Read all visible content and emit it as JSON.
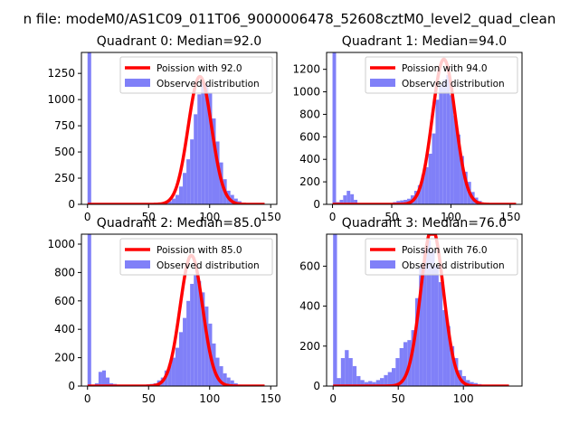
{
  "chart_data": {
    "suptitle": "n file: modeM0/AS1C09_011T06_9000006478_52608cztM0_level2_quad_clean",
    "panels": [
      {
        "type": "bar",
        "title": "Quadrant 0: Median=92.0",
        "xlim": [
          -5,
          155
        ],
        "ylim": [
          0,
          1450
        ],
        "xticks": [
          0,
          50,
          100,
          150
        ],
        "yticks": [
          0,
          250,
          500,
          750,
          1000,
          1250
        ],
        "bin_width": 3,
        "bins": [
          [
            0,
            1450
          ],
          [
            57,
            3
          ],
          [
            60,
            8
          ],
          [
            63,
            15
          ],
          [
            66,
            30
          ],
          [
            69,
            55
          ],
          [
            72,
            90
          ],
          [
            75,
            170
          ],
          [
            78,
            300
          ],
          [
            81,
            430
          ],
          [
            84,
            620
          ],
          [
            87,
            860
          ],
          [
            90,
            1050
          ],
          [
            93,
            1180
          ],
          [
            96,
            1150
          ],
          [
            99,
            1060
          ],
          [
            102,
            820
          ],
          [
            105,
            600
          ],
          [
            108,
            400
          ],
          [
            111,
            240
          ],
          [
            114,
            130
          ],
          [
            117,
            90
          ],
          [
            120,
            55
          ],
          [
            123,
            30
          ],
          [
            126,
            15
          ],
          [
            129,
            8
          ],
          [
            132,
            4
          ],
          [
            135,
            2
          ],
          [
            138,
            1
          ],
          [
            141,
            1
          ]
        ],
        "poisson_mean": 92,
        "poisson_peak": 1220,
        "poisson_range": [
          0,
          145
        ],
        "legend": {
          "line_label": "Poission with 92.0",
          "bar_label": "Observed distribution",
          "loc": "upper right"
        }
      },
      {
        "type": "bar",
        "title": "Quadrant 1: Median=94.0",
        "xlim": [
          -5,
          160
        ],
        "ylim": [
          0,
          1350
        ],
        "xticks": [
          0,
          50,
          100,
          150
        ],
        "yticks": [
          0,
          200,
          400,
          600,
          800,
          1000,
          1200
        ],
        "bin_width": 3,
        "bins": [
          [
            0,
            1350
          ],
          [
            3,
            20
          ],
          [
            6,
            40
          ],
          [
            9,
            80
          ],
          [
            12,
            120
          ],
          [
            15,
            90
          ],
          [
            18,
            40
          ],
          [
            21,
            10
          ],
          [
            48,
            10
          ],
          [
            51,
            20
          ],
          [
            54,
            30
          ],
          [
            57,
            35
          ],
          [
            60,
            40
          ],
          [
            63,
            50
          ],
          [
            66,
            80
          ],
          [
            69,
            120
          ],
          [
            72,
            170
          ],
          [
            75,
            260
          ],
          [
            78,
            330
          ],
          [
            81,
            450
          ],
          [
            84,
            630
          ],
          [
            87,
            930
          ],
          [
            90,
            1060
          ],
          [
            93,
            1110
          ],
          [
            96,
            1150
          ],
          [
            99,
            970
          ],
          [
            102,
            790
          ],
          [
            105,
            620
          ],
          [
            108,
            430
          ],
          [
            111,
            290
          ],
          [
            114,
            200
          ],
          [
            117,
            110
          ],
          [
            120,
            60
          ],
          [
            123,
            30
          ],
          [
            126,
            15
          ],
          [
            129,
            5
          ]
        ],
        "poisson_mean": 94,
        "poisson_peak": 1290,
        "poisson_range": [
          0,
          155
        ],
        "legend": {
          "line_label": "Poission with 94.0",
          "bar_label": "Observed distribution",
          "loc": "upper right"
        }
      },
      {
        "type": "bar",
        "title": "Quadrant 2: Median=85.0",
        "xlim": [
          -5,
          155
        ],
        "ylim": [
          0,
          1070
        ],
        "xticks": [
          0,
          50,
          100,
          150
        ],
        "yticks": [
          0,
          200,
          400,
          600,
          800,
          1000
        ],
        "bin_width": 3,
        "bins": [
          [
            0,
            1070
          ],
          [
            6,
            20
          ],
          [
            9,
            100
          ],
          [
            12,
            110
          ],
          [
            15,
            60
          ],
          [
            18,
            20
          ],
          [
            21,
            15
          ],
          [
            24,
            10
          ],
          [
            27,
            8
          ],
          [
            30,
            5
          ],
          [
            33,
            3
          ],
          [
            36,
            2
          ],
          [
            42,
            5
          ],
          [
            45,
            8
          ],
          [
            48,
            12
          ],
          [
            51,
            15
          ],
          [
            54,
            20
          ],
          [
            57,
            40
          ],
          [
            60,
            60
          ],
          [
            63,
            110
          ],
          [
            66,
            150
          ],
          [
            69,
            200
          ],
          [
            72,
            270
          ],
          [
            75,
            380
          ],
          [
            78,
            480
          ],
          [
            81,
            600
          ],
          [
            84,
            720
          ],
          [
            87,
            780
          ],
          [
            90,
            740
          ],
          [
            93,
            660
          ],
          [
            96,
            560
          ],
          [
            99,
            440
          ],
          [
            102,
            300
          ],
          [
            105,
            200
          ],
          [
            108,
            140
          ],
          [
            111,
            90
          ],
          [
            114,
            60
          ],
          [
            117,
            40
          ],
          [
            120,
            20
          ],
          [
            123,
            10
          ],
          [
            126,
            5
          ]
        ],
        "poisson_mean": 85,
        "poisson_peak": 920,
        "poisson_range": [
          0,
          145
        ],
        "legend": {
          "line_label": "Poission with 85.0",
          "bar_label": "Observed distribution",
          "loc": "upper right"
        }
      },
      {
        "type": "bar",
        "title": "Quadrant 3: Median=76.0",
        "xlim": [
          -5,
          145
        ],
        "ylim": [
          0,
          760
        ],
        "xticks": [
          0,
          50,
          100
        ],
        "yticks": [
          0,
          200,
          400,
          600
        ],
        "bin_width": 3,
        "bins": [
          [
            0,
            760
          ],
          [
            3,
            40
          ],
          [
            6,
            140
          ],
          [
            9,
            180
          ],
          [
            12,
            140
          ],
          [
            15,
            100
          ],
          [
            18,
            50
          ],
          [
            21,
            30
          ],
          [
            24,
            20
          ],
          [
            27,
            25
          ],
          [
            30,
            20
          ],
          [
            33,
            30
          ],
          [
            36,
            40
          ],
          [
            39,
            55
          ],
          [
            42,
            70
          ],
          [
            45,
            90
          ],
          [
            48,
            140
          ],
          [
            51,
            190
          ],
          [
            54,
            220
          ],
          [
            57,
            230
          ],
          [
            60,
            280
          ],
          [
            63,
            440
          ],
          [
            66,
            600
          ],
          [
            69,
            690
          ],
          [
            72,
            730
          ],
          [
            75,
            680
          ],
          [
            78,
            600
          ],
          [
            81,
            520
          ],
          [
            84,
            380
          ],
          [
            87,
            300
          ],
          [
            90,
            200
          ],
          [
            93,
            140
          ],
          [
            96,
            80
          ],
          [
            99,
            50
          ],
          [
            102,
            30
          ],
          [
            105,
            20
          ],
          [
            108,
            15
          ],
          [
            111,
            10
          ],
          [
            114,
            5
          ]
        ],
        "poisson_mean": 76,
        "poisson_peak": 790,
        "poisson_range": [
          0,
          135
        ],
        "legend": {
          "line_label": "Poission with 76.0",
          "bar_label": "Observed distribution",
          "loc": "upper right"
        }
      }
    ],
    "colors": {
      "bar": "#8080f8",
      "line": "#ff0000",
      "axis": "#000000"
    }
  }
}
